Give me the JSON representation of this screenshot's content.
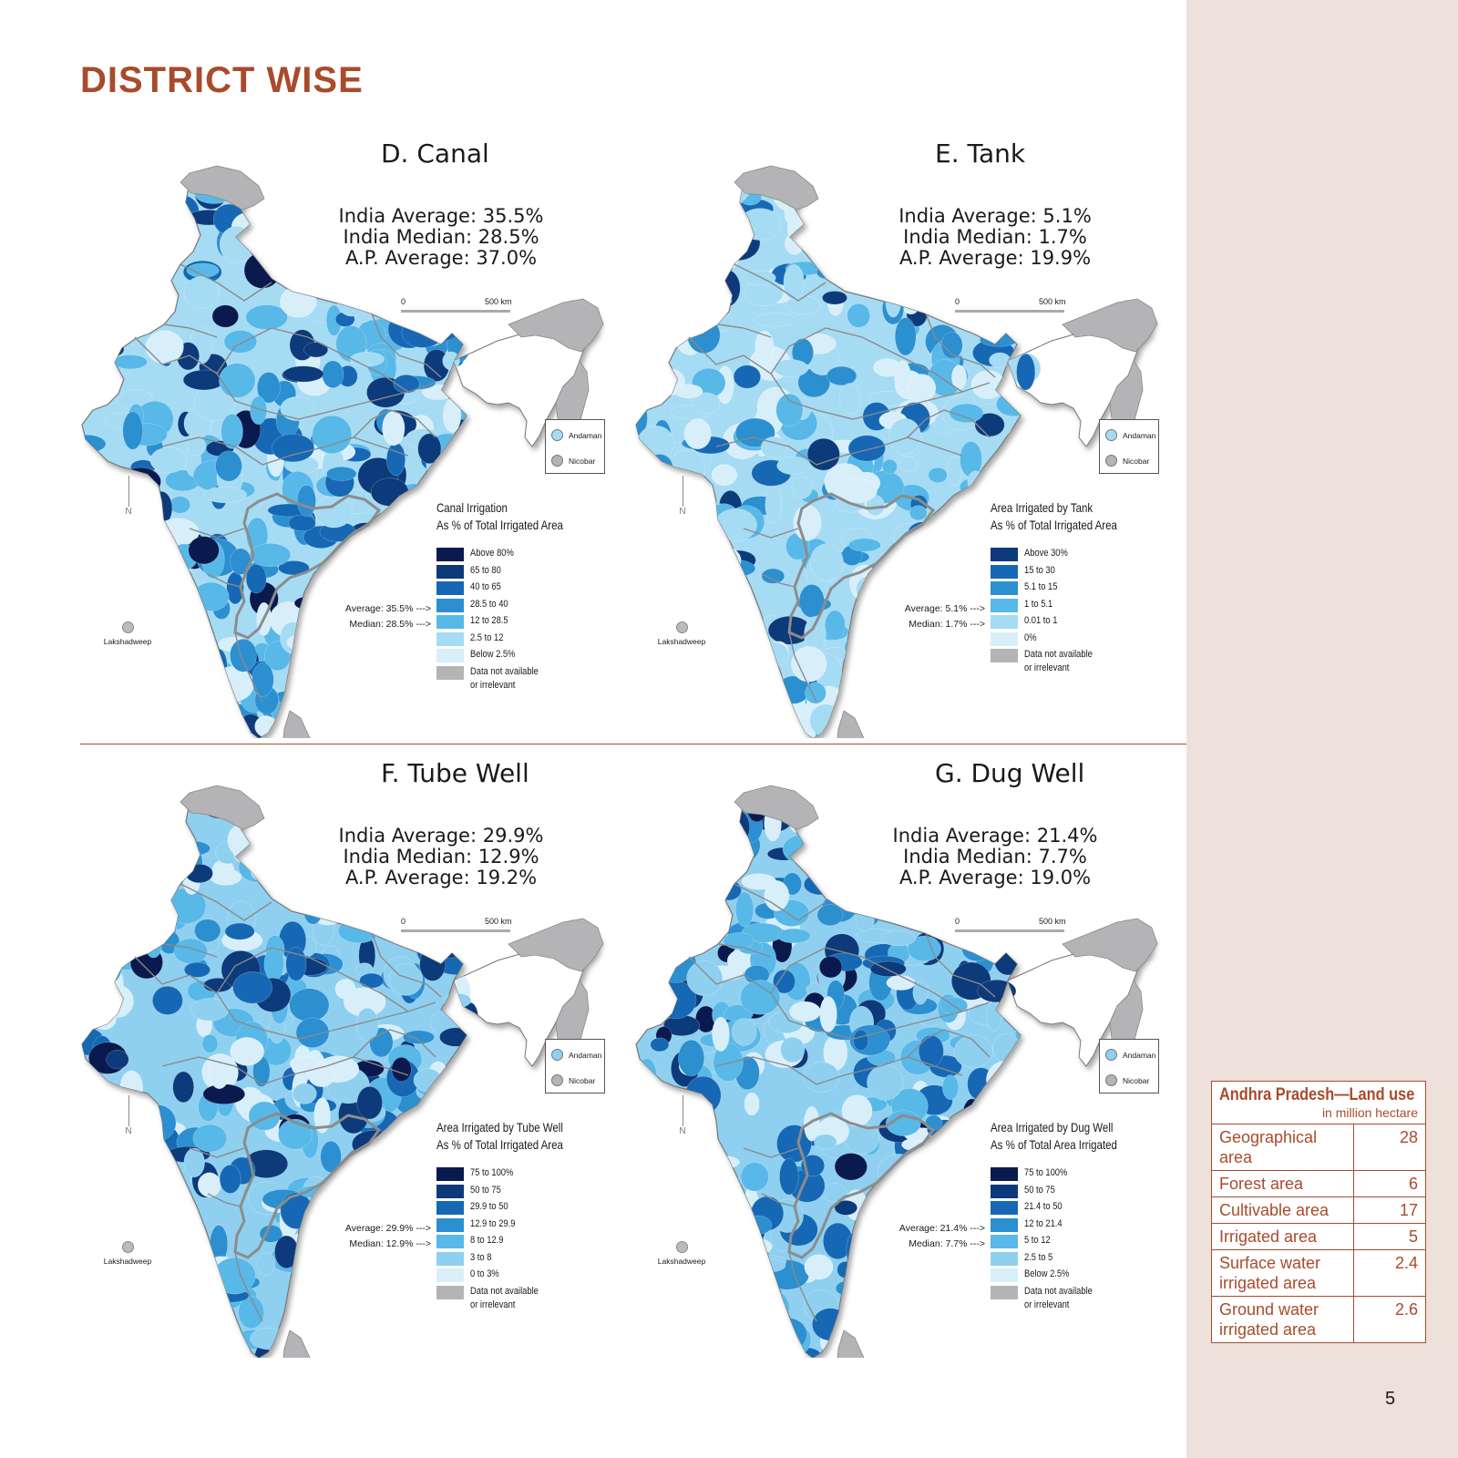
{
  "heading": "DISTRICT WISE",
  "colors": {
    "accent": "#a84b2c",
    "sidebar_bg": "#eee0db",
    "na_gray": "#b4b4b6",
    "palette": [
      "#0a1a4f",
      "#0d3a7a",
      "#1668b4",
      "#2c8fd0",
      "#58b8e8",
      "#8fd0f0",
      "#c6e8f8",
      "#e4f4fc"
    ]
  },
  "panels": [
    {
      "title": "D. Canal",
      "stats": [
        "India Average: 35.5%",
        "India Median: 28.5%",
        "A.P. Average: 37.0%"
      ],
      "scale_zero": "0",
      "scale_label": "500 km",
      "islands": [
        "Andaman",
        "Nicobar"
      ],
      "lakshadweep": "Lakshadweep",
      "north": "N",
      "legend_title": [
        "Canal Irrigation",
        "As % of Total Irrigated Area"
      ],
      "legend": [
        {
          "label": "Above 80%",
          "color": "#0a1a4f"
        },
        {
          "label": "65 to 80",
          "color": "#0d3a7a"
        },
        {
          "label": "40 to 65",
          "color": "#1668b4"
        },
        {
          "label": "28.5 to 40",
          "color": "#2c8fd0"
        },
        {
          "label": "12 to 28.5",
          "color": "#58b8e8"
        },
        {
          "label": "2.5 to 12",
          "color": "#a6dbf4"
        },
        {
          "label": "Below 2.5%",
          "color": "#d8effa"
        },
        {
          "label": "Data not available",
          "label2": "or irrelevant",
          "color": "#b4b4b6"
        }
      ],
      "avg_marker": "Average: 35.5% --->",
      "median_marker": "Median: 28.5% --->",
      "shade_weights": [
        2,
        3,
        5,
        8,
        10,
        8,
        4
      ]
    },
    {
      "title": "E. Tank",
      "stats": [
        "India Average: 5.1%",
        "India Median: 1.7%",
        "A.P. Average: 19.9%"
      ],
      "scale_zero": "0",
      "scale_label": "500 km",
      "islands": [
        "Andaman",
        "Nicobar"
      ],
      "lakshadweep": "Lakshadweep",
      "north": "N",
      "legend_title": [
        "Area Irrigated by Tank",
        "As % of Total Irrigated Area"
      ],
      "legend": [
        {
          "label": "Above 30%",
          "color": "#0d3a7a"
        },
        {
          "label": "15 to 30",
          "color": "#1668b4"
        },
        {
          "label": "5.1 to 15",
          "color": "#2c8fd0"
        },
        {
          "label": "1 to 5.1",
          "color": "#58b8e8"
        },
        {
          "label": "0.01 to 1",
          "color": "#a6dbf4"
        },
        {
          "label": "0%",
          "color": "#d8effa"
        },
        {
          "label": "Data not available",
          "label2": "or irrelevant",
          "color": "#b4b4b6"
        }
      ],
      "avg_marker": "Average: 5.1% --->",
      "median_marker": "Median: 1.7% --->",
      "shade_weights": [
        2,
        3,
        4,
        7,
        12,
        8
      ]
    },
    {
      "title": "F. Tube Well",
      "stats": [
        "India Average: 29.9%",
        "India Median: 12.9%",
        "A.P. Average: 19.2%"
      ],
      "scale_zero": "0",
      "scale_label": "500 km",
      "islands": [
        "Andaman",
        "Nicobar"
      ],
      "lakshadweep": "Lakshadweep",
      "north": "N",
      "legend_title": [
        "Area Irrigated by Tube Well",
        "As % of Total Irrigated Area"
      ],
      "legend": [
        {
          "label": "75 to 100%",
          "color": "#0a1a4f"
        },
        {
          "label": "50 to 75",
          "color": "#0d3a7a"
        },
        {
          "label": "29.9 to 50",
          "color": "#1668b4"
        },
        {
          "label": "12.9 to 29.9",
          "color": "#2c8fd0"
        },
        {
          "label": "8 to 12.9",
          "color": "#58b8e8"
        },
        {
          "label": "3 to 8",
          "color": "#8fd0f0"
        },
        {
          "label": "0 to 3%",
          "color": "#d8effa"
        },
        {
          "label": "Data not available",
          "label2": "or irrelevant",
          "color": "#b4b4b6"
        }
      ],
      "avg_marker": "Average: 29.9% --->",
      "median_marker": "Median: 12.9% --->",
      "shade_weights": [
        2,
        4,
        6,
        8,
        8,
        7,
        6
      ]
    },
    {
      "title": "G. Dug Well",
      "stats": [
        "India Average: 21.4%",
        "India Median: 7.7%",
        "A.P. Average: 19.0%"
      ],
      "scale_zero": "0",
      "scale_label": "500 km",
      "islands": [
        "Andaman",
        "Nicobar"
      ],
      "lakshadweep": "Lakshadweep",
      "north": "N",
      "legend_title": [
        "Area Irrigated by Dug Well",
        "As % of Total Area Irrigated"
      ],
      "legend": [
        {
          "label": "75 to 100%",
          "color": "#0a1a4f"
        },
        {
          "label": "50 to 75",
          "color": "#0d3a7a"
        },
        {
          "label": "21.4 to 50",
          "color": "#1668b4"
        },
        {
          "label": "12 to 21.4",
          "color": "#2c8fd0"
        },
        {
          "label": "5 to 12",
          "color": "#58b8e8"
        },
        {
          "label": "2.5 to 5",
          "color": "#8fd0f0"
        },
        {
          "label": "Below 2.5%",
          "color": "#d8effa"
        },
        {
          "label": "Data not available",
          "label2": "or irrelevant",
          "color": "#b4b4b6"
        }
      ],
      "avg_marker": "Average: 21.4% --->",
      "median_marker": "Median: 7.7% --->",
      "shade_weights": [
        3,
        5,
        7,
        7,
        7,
        6,
        6
      ]
    }
  ],
  "ap_table": {
    "title": "Andhra Pradesh—Land use",
    "unit": "in million hectare",
    "rows": [
      {
        "label": "Geographical area",
        "value": "28"
      },
      {
        "label": "Forest area",
        "value": "6"
      },
      {
        "label": "Cultivable area",
        "value": "17"
      },
      {
        "label": "Irrigated area",
        "value": "5"
      },
      {
        "label": "Surface water irrigated area",
        "value": "2.4"
      },
      {
        "label": "Ground water irrigated area",
        "value": "2.6"
      }
    ]
  },
  "page_number": "5"
}
